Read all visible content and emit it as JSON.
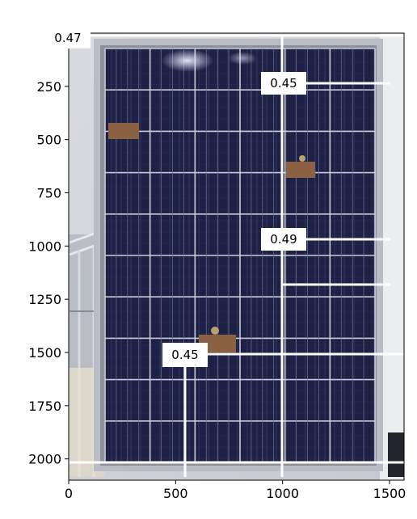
{
  "image": {
    "description_icon": "solar-panel-photo",
    "x_range": [
      0,
      1568
    ],
    "y_range": [
      2100,
      0
    ]
  },
  "axes": {
    "x_ticks": [
      {
        "value": 0,
        "label": "0"
      },
      {
        "value": 500,
        "label": "500"
      },
      {
        "value": 1000,
        "label": "1000"
      },
      {
        "value": 1500,
        "label": "1500"
      }
    ],
    "y_ticks": [
      {
        "value": 250,
        "label": "250"
      },
      {
        "value": 500,
        "label": "500"
      },
      {
        "value": 750,
        "label": "750"
      },
      {
        "value": 1000,
        "label": "1000"
      },
      {
        "value": 1250,
        "label": "1250"
      },
      {
        "value": 1500,
        "label": "1500"
      },
      {
        "value": 1750,
        "label": "1750"
      },
      {
        "value": 2000,
        "label": "2000"
      }
    ]
  },
  "annotations": [
    {
      "label": "0.47",
      "x": 10,
      "y": 20
    },
    {
      "label": "0.45",
      "x": 1000,
      "y": 250
    },
    {
      "label": "0.49",
      "x": 1000,
      "y": 960
    },
    {
      "label": "0.45",
      "x": 550,
      "y": 1510
    }
  ],
  "colors": {
    "panel": "#1b1f3f",
    "frame": "#b9bcc2",
    "guide_line": "#ffffff",
    "background": "#ffffff"
  }
}
